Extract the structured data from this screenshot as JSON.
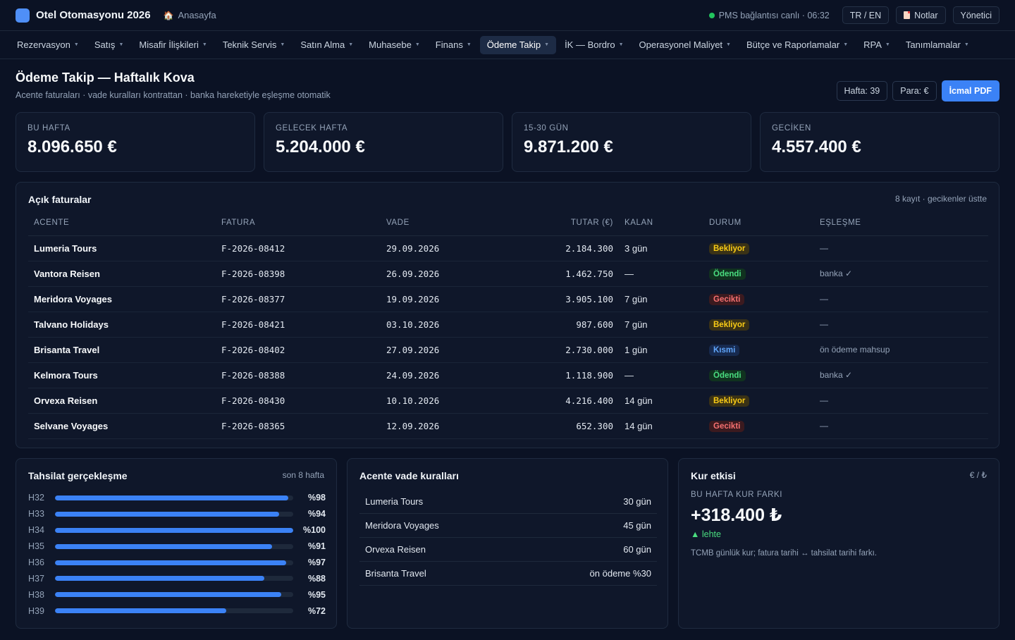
{
  "app": {
    "title": "Otel Otomasyonu 2026",
    "home": "Anasayfa"
  },
  "topbar": {
    "pms_status": "PMS bağlantısı canlı · 06:32",
    "lang": "TR / EN",
    "notes": "Notlar",
    "user": "Yönetici"
  },
  "nav": {
    "items": [
      {
        "label": "Rezervasyon"
      },
      {
        "label": "Satış"
      },
      {
        "label": "Misafir İlişkileri"
      },
      {
        "label": "Teknik Servis"
      },
      {
        "label": "Satın Alma"
      },
      {
        "label": "Muhasebe"
      },
      {
        "label": "Finans"
      },
      {
        "label": "Ödeme Takip"
      },
      {
        "label": "İK — Bordro"
      },
      {
        "label": "Operasyonel Maliyet"
      },
      {
        "label": "Bütçe ve Raporlamalar"
      },
      {
        "label": "RPA"
      },
      {
        "label": "Tanımlamalar"
      }
    ],
    "active": "Ödeme Takip"
  },
  "page": {
    "title": "Ödeme Takip — Haftalık Kova",
    "subtitle": "Acente faturaları · vade kuralları kontrattan · banka hareketiyle eşleşme otomatik",
    "week_chip": "Hafta: 39",
    "currency_chip": "Para: €",
    "pdf_button": "İcmal PDF"
  },
  "kpis": [
    {
      "label": "BU HAFTA",
      "value": "8.096.650 €"
    },
    {
      "label": "GELECEK HAFTA",
      "value": "5.204.000 €"
    },
    {
      "label": "15-30 GÜN",
      "value": "9.871.200 €"
    },
    {
      "label": "GECİKEN",
      "value": "4.557.400 €"
    }
  ],
  "invoices": {
    "title": "Açık faturalar",
    "meta": "8 kayıt · gecikenler üstte",
    "headers": {
      "agent": "ACENTE",
      "invoice": "FATURA",
      "due": "VADE",
      "amount": "TUTAR (€)",
      "remaining": "KALAN",
      "status": "DURUM",
      "match": "EŞLEŞME"
    },
    "rows": [
      {
        "agent": "Lumeria Tours",
        "invoice": "F-2026-08412",
        "due": "29.09.2026",
        "amount": "2.184.300",
        "remaining": "3 gün",
        "status": "Bekliyor",
        "status_kind": "wait",
        "match": "—"
      },
      {
        "agent": "Vantora Reisen",
        "invoice": "F-2026-08398",
        "due": "26.09.2026",
        "amount": "1.462.750",
        "remaining": "—",
        "status": "Ödendi",
        "status_kind": "paid",
        "match": "banka ✓"
      },
      {
        "agent": "Meridora Voyages",
        "invoice": "F-2026-08377",
        "due": "19.09.2026",
        "amount": "3.905.100",
        "remaining": "7 gün",
        "status": "Gecikti",
        "status_kind": "late",
        "match": "—"
      },
      {
        "agent": "Talvano Holidays",
        "invoice": "F-2026-08421",
        "due": "03.10.2026",
        "amount": "987.600",
        "remaining": "7 gün",
        "status": "Bekliyor",
        "status_kind": "wait",
        "match": "—"
      },
      {
        "agent": "Brisanta Travel",
        "invoice": "F-2026-08402",
        "due": "27.09.2026",
        "amount": "2.730.000",
        "remaining": "1 gün",
        "status": "Kısmi",
        "status_kind": "part",
        "match": "ön ödeme mahsup"
      },
      {
        "agent": "Kelmora Tours",
        "invoice": "F-2026-08388",
        "due": "24.09.2026",
        "amount": "1.118.900",
        "remaining": "—",
        "status": "Ödendi",
        "status_kind": "paid",
        "match": "banka ✓"
      },
      {
        "agent": "Orvexa Reisen",
        "invoice": "F-2026-08430",
        "due": "10.10.2026",
        "amount": "4.216.400",
        "remaining": "14 gün",
        "status": "Bekliyor",
        "status_kind": "wait",
        "match": "—"
      },
      {
        "agent": "Selvane Voyages",
        "invoice": "F-2026-08365",
        "due": "12.09.2026",
        "amount": "652.300",
        "remaining": "14 gün",
        "status": "Gecikti",
        "status_kind": "late",
        "match": "—"
      }
    ]
  },
  "collection": {
    "title": "Tahsilat gerçekleşme",
    "meta": "son 8 hafta",
    "weeks": [
      {
        "label": "H32",
        "pct": 98,
        "text": "%98"
      },
      {
        "label": "H33",
        "pct": 94,
        "text": "%94"
      },
      {
        "label": "H34",
        "pct": 100,
        "text": "%100"
      },
      {
        "label": "H35",
        "pct": 91,
        "text": "%91"
      },
      {
        "label": "H36",
        "pct": 97,
        "text": "%97"
      },
      {
        "label": "H37",
        "pct": 88,
        "text": "%88"
      },
      {
        "label": "H38",
        "pct": 95,
        "text": "%95"
      },
      {
        "label": "H39",
        "pct": 72,
        "text": "%72"
      }
    ]
  },
  "rules": {
    "title": "Acente vade kuralları",
    "items": [
      {
        "agent": "Lumeria Tours",
        "term": "30 gün"
      },
      {
        "agent": "Meridora Voyages",
        "term": "45 gün"
      },
      {
        "agent": "Orvexa Reisen",
        "term": "60 gün"
      },
      {
        "agent": "Brisanta Travel",
        "term": "ön ödeme %30"
      }
    ]
  },
  "fx": {
    "title": "Kur etkisi",
    "meta": "€ / ₺",
    "label": "BU HAFTA KUR FARKI",
    "value": "+318.400 ₺",
    "trend": "▲ lehte",
    "note": "TCMB günlük kur; fatura tarihi ↔ tahsilat tarihi farkı."
  }
}
